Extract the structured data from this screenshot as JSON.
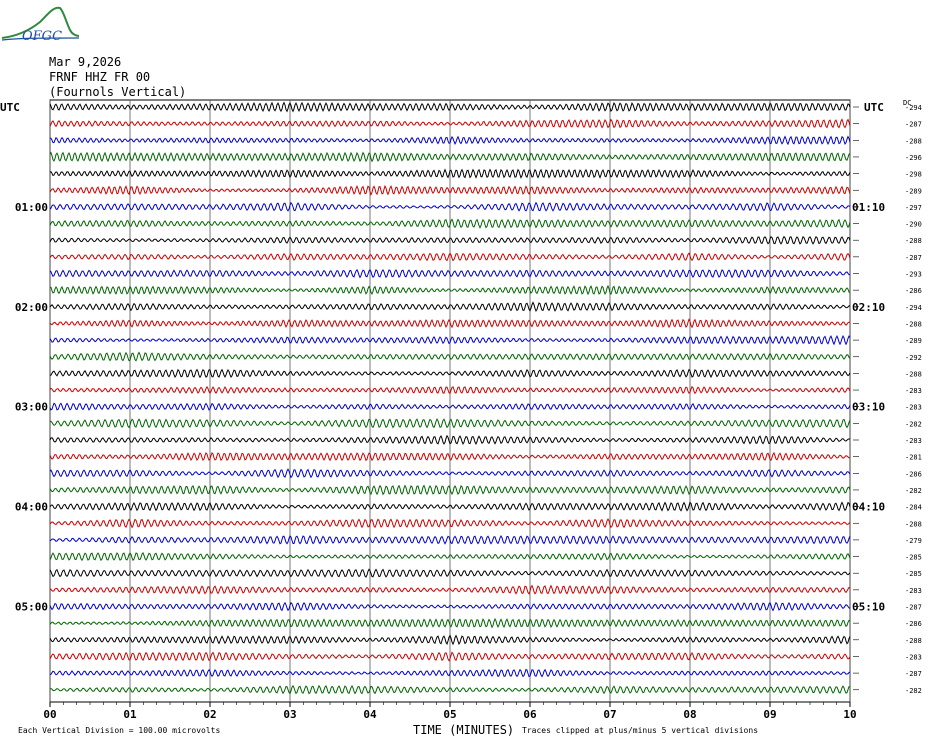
{
  "header": {
    "date": "Mar 9,2026",
    "station": "FRNF HHZ FR 00",
    "location": "(Fournols Vertical)"
  },
  "logo": {
    "text": "OFGC"
  },
  "axes": {
    "left_label": "UTC",
    "right_label": "UTC",
    "dc_label": "DC",
    "xlabel": "TIME (MINUTES)",
    "x_ticks": [
      "00",
      "01",
      "02",
      "03",
      "04",
      "05",
      "06",
      "07",
      "08",
      "09",
      "10"
    ]
  },
  "footer": {
    "scale_note": "Each Vertical Division =  100.00 microvolts",
    "clip_note": "Traces clipped at plus/minus 5 vertical divisions"
  },
  "chart_data": {
    "type": "line",
    "title": "",
    "xlabel": "TIME (MINUTES)",
    "ylabel": "",
    "xlim": [
      0,
      10
    ],
    "grid": true,
    "trace_colors": [
      "#000000",
      "#cc0000",
      "#0000cc",
      "#006600"
    ],
    "left_hour_labels": [
      {
        "trace_index": 6,
        "label": "01:00"
      },
      {
        "trace_index": 12,
        "label": "02:00"
      },
      {
        "trace_index": 18,
        "label": "03:00"
      },
      {
        "trace_index": 24,
        "label": "04:00"
      },
      {
        "trace_index": 30,
        "label": "05:00"
      }
    ],
    "right_hour_labels": [
      {
        "trace_index": 6,
        "label": "01:10"
      },
      {
        "trace_index": 12,
        "label": "02:10"
      },
      {
        "trace_index": 18,
        "label": "03:10"
      },
      {
        "trace_index": 24,
        "label": "04:10"
      },
      {
        "trace_index": 30,
        "label": "05:10"
      }
    ],
    "dc_offsets": [
      "-294",
      "-287",
      "-288",
      "-296",
      "-298",
      "-289",
      "-297",
      "-290",
      "-288",
      "-287",
      "-293",
      "-286",
      "-294",
      "-288",
      "-289",
      "-292",
      "-288",
      "-283",
      "-283",
      "-282",
      "-283",
      "-281",
      "-286",
      "-282",
      "-284",
      "-288",
      "-279",
      "-285",
      "-285",
      "-283",
      "-287",
      "-286",
      "-288",
      "-283",
      "-287",
      "-282"
    ]
  }
}
